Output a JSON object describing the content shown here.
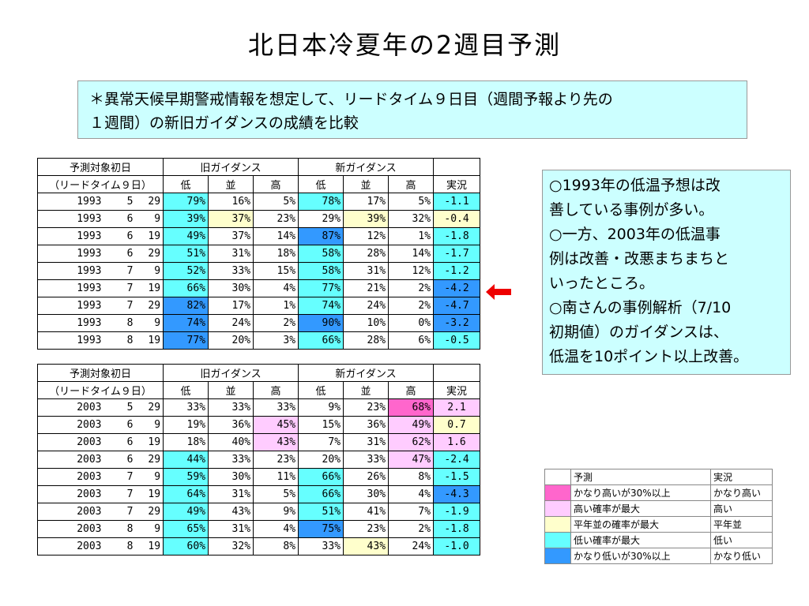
{
  "title": "北日本冷夏年の2週目予測",
  "note": {
    "line1": "＊異常天候早期警戒情報を想定して、リードタイム９日目（週間予報より先の",
    "line2": "１週間）の新旧ガイダンスの成績を比較"
  },
  "headers": {
    "target_date_1": "予測対象初日",
    "target_date_2": "（リードタイム９日）",
    "old_guidance": "旧ガイダンス",
    "new_guidance": "新ガイダンス",
    "low": "低",
    "normal": "並",
    "high": "高",
    "actual": "実況"
  },
  "table_1993": [
    {
      "y": "1993",
      "m": "5",
      "d": "29",
      "ol": "79%",
      "on": "16%",
      "oh": "5%",
      "nl": "78%",
      "nn": "17%",
      "nh": "5%",
      "a": "-1.1",
      "c": [
        "low",
        "",
        "",
        "low",
        "",
        "",
        "low"
      ]
    },
    {
      "y": "1993",
      "m": "6",
      "d": "9",
      "ol": "39%",
      "on": "37%",
      "oh": "23%",
      "nl": "29%",
      "nn": "39%",
      "nh": "32%",
      "a": "-0.4",
      "c": [
        "low",
        "norm",
        "",
        "",
        "norm",
        "",
        "norm"
      ]
    },
    {
      "y": "1993",
      "m": "6",
      "d": "19",
      "ol": "49%",
      "on": "37%",
      "oh": "14%",
      "nl": "87%",
      "nn": "12%",
      "nh": "1%",
      "a": "-1.8",
      "c": [
        "low",
        "",
        "",
        "vlow",
        "",
        "",
        "low"
      ]
    },
    {
      "y": "1993",
      "m": "6",
      "d": "29",
      "ol": "51%",
      "on": "31%",
      "oh": "18%",
      "nl": "58%",
      "nn": "28%",
      "nh": "14%",
      "a": "-1.7",
      "c": [
        "low",
        "",
        "",
        "low",
        "",
        "",
        "low"
      ]
    },
    {
      "y": "1993",
      "m": "7",
      "d": "9",
      "ol": "52%",
      "on": "33%",
      "oh": "15%",
      "nl": "58%",
      "nn": "31%",
      "nh": "12%",
      "a": "-1.2",
      "c": [
        "low",
        "",
        "",
        "low",
        "",
        "",
        "low"
      ]
    },
    {
      "y": "1993",
      "m": "7",
      "d": "19",
      "ol": "66%",
      "on": "30%",
      "oh": "4%",
      "nl": "77%",
      "nn": "21%",
      "nh": "2%",
      "a": "-4.2",
      "c": [
        "low",
        "",
        "",
        "low",
        "",
        "",
        "vlow"
      ]
    },
    {
      "y": "1993",
      "m": "7",
      "d": "29",
      "ol": "82%",
      "on": "17%",
      "oh": "1%",
      "nl": "74%",
      "nn": "24%",
      "nh": "2%",
      "a": "-4.7",
      "c": [
        "vlow",
        "",
        "",
        "low",
        "",
        "",
        "vlow"
      ]
    },
    {
      "y": "1993",
      "m": "8",
      "d": "9",
      "ol": "74%",
      "on": "24%",
      "oh": "2%",
      "nl": "90%",
      "nn": "10%",
      "nh": "0%",
      "a": "-3.2",
      "c": [
        "vlow",
        "",
        "",
        "vlow",
        "",
        "",
        "vlow"
      ]
    },
    {
      "y": "1993",
      "m": "8",
      "d": "19",
      "ol": "77%",
      "on": "20%",
      "oh": "3%",
      "nl": "66%",
      "nn": "28%",
      "nh": "6%",
      "a": "-0.5",
      "c": [
        "vlow",
        "",
        "",
        "low",
        "",
        "",
        "low"
      ]
    }
  ],
  "table_2003": [
    {
      "y": "2003",
      "m": "5",
      "d": "29",
      "ol": "33%",
      "on": "33%",
      "oh": "33%",
      "nl": "9%",
      "nn": "23%",
      "nh": "68%",
      "a": "2.1",
      "c": [
        "",
        "",
        "",
        "",
        "",
        "vhigh",
        "high"
      ]
    },
    {
      "y": "2003",
      "m": "6",
      "d": "9",
      "ol": "19%",
      "on": "36%",
      "oh": "45%",
      "nl": "15%",
      "nn": "36%",
      "nh": "49%",
      "a": "0.7",
      "c": [
        "",
        "",
        "high",
        "",
        "",
        "high",
        "norm"
      ]
    },
    {
      "y": "2003",
      "m": "6",
      "d": "19",
      "ol": "18%",
      "on": "40%",
      "oh": "43%",
      "nl": "7%",
      "nn": "31%",
      "nh": "62%",
      "a": "1.6",
      "c": [
        "",
        "",
        "high",
        "",
        "",
        "high",
        "high"
      ]
    },
    {
      "y": "2003",
      "m": "6",
      "d": "29",
      "ol": "44%",
      "on": "33%",
      "oh": "23%",
      "nl": "20%",
      "nn": "33%",
      "nh": "47%",
      "a": "-2.4",
      "c": [
        "low",
        "",
        "",
        "",
        "",
        "high",
        "low"
      ]
    },
    {
      "y": "2003",
      "m": "7",
      "d": "9",
      "ol": "59%",
      "on": "30%",
      "oh": "11%",
      "nl": "66%",
      "nn": "26%",
      "nh": "8%",
      "a": "-1.5",
      "c": [
        "low",
        "",
        "",
        "low",
        "",
        "",
        "low"
      ]
    },
    {
      "y": "2003",
      "m": "7",
      "d": "19",
      "ol": "64%",
      "on": "31%",
      "oh": "5%",
      "nl": "66%",
      "nn": "30%",
      "nh": "4%",
      "a": "-4.3",
      "c": [
        "low",
        "",
        "",
        "low",
        "",
        "",
        "vlow"
      ]
    },
    {
      "y": "2003",
      "m": "7",
      "d": "29",
      "ol": "49%",
      "on": "43%",
      "oh": "9%",
      "nl": "51%",
      "nn": "41%",
      "nh": "7%",
      "a": "-1.9",
      "c": [
        "low",
        "",
        "",
        "low",
        "",
        "",
        "low"
      ]
    },
    {
      "y": "2003",
      "m": "8",
      "d": "9",
      "ol": "65%",
      "on": "31%",
      "oh": "4%",
      "nl": "75%",
      "nn": "23%",
      "nh": "2%",
      "a": "-1.8",
      "c": [
        "low",
        "",
        "",
        "vlow",
        "",
        "",
        "low"
      ]
    },
    {
      "y": "2003",
      "m": "8",
      "d": "19",
      "ol": "60%",
      "on": "32%",
      "oh": "8%",
      "nl": "33%",
      "nn": "43%",
      "nh": "24%",
      "a": "-1.0",
      "c": [
        "low",
        "",
        "",
        "",
        "norm",
        "",
        "low"
      ]
    }
  ],
  "sidebox": [
    "○1993年の低温予想は改",
    "善している事例が多い。",
    "○一方、2003年の低温事",
    "例は改善・改悪まちまちと",
    "いったところ。",
    "○南さんの事例解析（7/10",
    "初期値）のガイダンスは、",
    "低温を10ポイント以上改善。"
  ],
  "legend": {
    "header_pred": "予測",
    "header_actual": "実況",
    "rows": [
      {
        "c": "vhigh",
        "pred": "かなり高いが30%以上",
        "actual": "かなり高い"
      },
      {
        "c": "high",
        "pred": "高い確率が最大",
        "actual": "高い"
      },
      {
        "c": "norm",
        "pred": "平年並の確率が最大",
        "actual": "平年並"
      },
      {
        "c": "low",
        "pred": "低い確率が最大",
        "actual": "低い"
      },
      {
        "c": "vlow",
        "pred": "かなり低いが30%以上",
        "actual": "かなり低い"
      }
    ]
  },
  "colors": {
    "vhigh": "#ff66cc",
    "high": "#ffccff",
    "norm": "#ffffcc",
    "low": "#66ffff",
    "vlow": "#3399ff",
    "note_bg": "#ccffff",
    "arrow": "#ee0000"
  }
}
